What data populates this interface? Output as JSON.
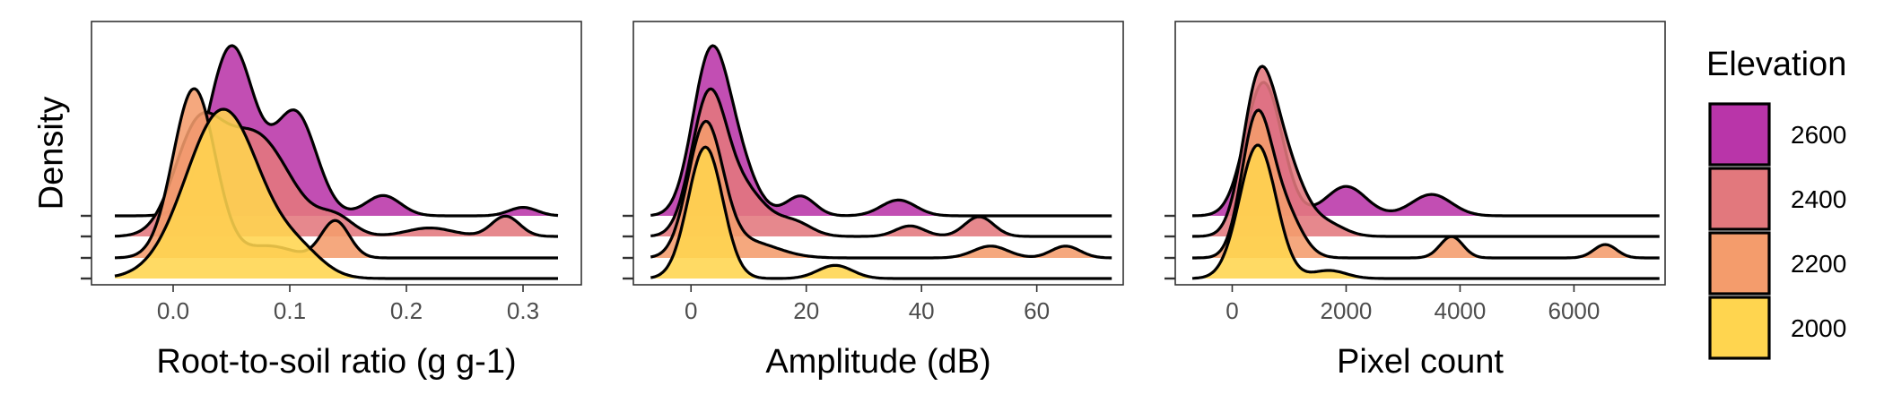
{
  "shared": {
    "ylabel": "Density",
    "legend": {
      "title": "Elevation",
      "position": "right",
      "levels": [
        "2600",
        "2400",
        "2200",
        "2000"
      ],
      "colors": {
        "2600": "#B935A9",
        "2400": "#E2787D",
        "2200": "#F49C6C",
        "2000": "#FFD54F"
      }
    },
    "ridge_order_bottom_to_top": [
      "2000",
      "2200",
      "2400",
      "2600"
    ]
  },
  "chart_data": [
    {
      "type": "area",
      "subtype": "ridgeline-density",
      "xlabel": "Root-to-soil ratio (g g-1)",
      "xlim": [
        -0.07,
        0.35
      ],
      "xticks": [
        0.0,
        0.1,
        0.2,
        0.3
      ],
      "xtick_labels": [
        "0.0",
        "0.1",
        "0.2",
        "0.3"
      ],
      "x_range": [
        -0.05,
        0.33
      ],
      "series": [
        {
          "name": "2000",
          "components": [
            {
              "mean": 0.043,
              "sd": 0.032,
              "weight": 1.0
            },
            {
              "mean": 0.11,
              "sd": 0.02,
              "weight": 0.12
            }
          ]
        },
        {
          "name": "2200",
          "components": [
            {
              "mean": 0.018,
              "sd": 0.018,
              "weight": 1.0
            },
            {
              "mean": 0.082,
              "sd": 0.02,
              "weight": 0.07
            },
            {
              "mean": 0.139,
              "sd": 0.012,
              "weight": 0.22
            }
          ]
        },
        {
          "name": "2400",
          "components": [
            {
              "mean": 0.02,
              "sd": 0.02,
              "weight": 0.55
            },
            {
              "mean": 0.07,
              "sd": 0.03,
              "weight": 0.6
            },
            {
              "mean": 0.14,
              "sd": 0.015,
              "weight": 0.1
            },
            {
              "mean": 0.22,
              "sd": 0.02,
              "weight": 0.05
            },
            {
              "mean": 0.285,
              "sd": 0.012,
              "weight": 0.12
            }
          ]
        },
        {
          "name": "2600",
          "components": [
            {
              "mean": 0.05,
              "sd": 0.02,
              "weight": 1.0
            },
            {
              "mean": 0.105,
              "sd": 0.018,
              "weight": 0.6
            },
            {
              "mean": 0.18,
              "sd": 0.015,
              "weight": 0.12
            },
            {
              "mean": 0.3,
              "sd": 0.012,
              "weight": 0.05
            }
          ]
        }
      ]
    },
    {
      "type": "area",
      "subtype": "ridgeline-density",
      "xlabel": "Amplitude (dB)",
      "xlim": [
        -10,
        75
      ],
      "xticks": [
        0,
        20,
        40,
        60
      ],
      "xtick_labels": [
        "0",
        "20",
        "40",
        "60"
      ],
      "x_range": [
        -7,
        73
      ],
      "series": [
        {
          "name": "2000",
          "components": [
            {
              "mean": 2.5,
              "sd": 3.0,
              "weight": 1.0
            },
            {
              "mean": 25,
              "sd": 3.0,
              "weight": 0.1
            }
          ]
        },
        {
          "name": "2200",
          "components": [
            {
              "mean": 2.5,
              "sd": 3.0,
              "weight": 1.0
            },
            {
              "mean": 10,
              "sd": 5,
              "weight": 0.12
            },
            {
              "mean": 52,
              "sd": 3,
              "weight": 0.09
            },
            {
              "mean": 65,
              "sd": 2.5,
              "weight": 0.09
            }
          ]
        },
        {
          "name": "2400",
          "components": [
            {
              "mean": 3,
              "sd": 3,
              "weight": 1.0
            },
            {
              "mean": 9,
              "sd": 4,
              "weight": 0.35
            },
            {
              "mean": 18,
              "sd": 3,
              "weight": 0.1
            },
            {
              "mean": 38,
              "sd": 2.5,
              "weight": 0.08
            },
            {
              "mean": 50,
              "sd": 2.5,
              "weight": 0.15
            }
          ]
        },
        {
          "name": "2600",
          "components": [
            {
              "mean": 3,
              "sd": 3,
              "weight": 1.0
            },
            {
              "mean": 7,
              "sd": 3.5,
              "weight": 0.5
            },
            {
              "mean": 19,
              "sd": 2.5,
              "weight": 0.15
            },
            {
              "mean": 36,
              "sd": 3,
              "weight": 0.12
            }
          ]
        }
      ]
    },
    {
      "type": "area",
      "subtype": "ridgeline-density",
      "xlabel": "Pixel count",
      "xlim": [
        -1000,
        7600
      ],
      "xticks": [
        0,
        2000,
        4000,
        6000
      ],
      "xtick_labels": [
        "0",
        "2000",
        "4000",
        "6000"
      ],
      "x_range": [
        -700,
        7500
      ],
      "series": [
        {
          "name": "2000",
          "components": [
            {
              "mean": 450,
              "sd": 320,
              "weight": 1.0
            },
            {
              "mean": 1700,
              "sd": 300,
              "weight": 0.06
            }
          ]
        },
        {
          "name": "2200",
          "components": [
            {
              "mean": 420,
              "sd": 260,
              "weight": 1.0
            },
            {
              "mean": 900,
              "sd": 300,
              "weight": 0.35
            },
            {
              "mean": 3850,
              "sd": 200,
              "weight": 0.16
            },
            {
              "mean": 6550,
              "sd": 200,
              "weight": 0.1
            }
          ]
        },
        {
          "name": "2400",
          "components": [
            {
              "mean": 450,
              "sd": 280,
              "weight": 1.0
            },
            {
              "mean": 900,
              "sd": 350,
              "weight": 0.55
            },
            {
              "mean": 1700,
              "sd": 300,
              "weight": 0.08
            }
          ]
        },
        {
          "name": "2600",
          "components": [
            {
              "mean": 550,
              "sd": 320,
              "weight": 1.0
            },
            {
              "mean": 2000,
              "sd": 350,
              "weight": 0.22
            },
            {
              "mean": 3500,
              "sd": 350,
              "weight": 0.16
            }
          ]
        }
      ]
    }
  ]
}
